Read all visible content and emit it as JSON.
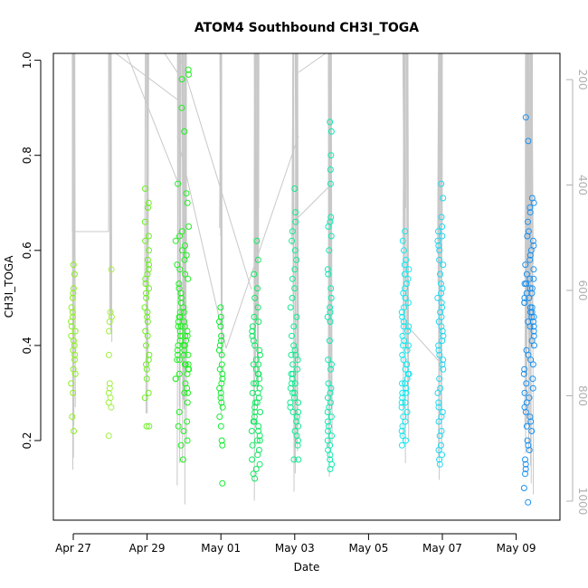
{
  "chart_data": {
    "type": "scatter",
    "title": "ATOM4 Southbound CH3I_TOGA",
    "xlabel": "Date",
    "ylabel": "CH3I_TOGA",
    "x_ticks": [
      "Apr 27",
      "Apr 29",
      "May 01",
      "May 03",
      "May 05",
      "May 07",
      "May 09"
    ],
    "xlim": [
      "Apr 26 12:00",
      "May 10 06:00"
    ],
    "ylim": [
      0.05,
      1.0
    ],
    "y_ticks": [
      0.2,
      0.4,
      0.6,
      0.8,
      1.0
    ],
    "right_axis": {
      "reversed": true,
      "range": [
        150,
        1030
      ],
      "ticks": [
        200,
        400,
        600,
        800,
        1000
      ]
    },
    "grid": false,
    "marker": "open-circle",
    "colors": {
      "Apr 27": "#8cf020",
      "Apr 28": "#a0f040",
      "Apr 29": "#6cf020",
      "Apr 30": "#20f020",
      "May 01": "#10ea30",
      "May 02": "#10e860",
      "May 03": "#10ea90",
      "May 04": "#10e8b0",
      "May 06": "#10e8f0",
      "May 07": "#20d8f0",
      "May 09": "#1890f0",
      "profile_line": "#c8c8c8"
    },
    "clusters": [
      {
        "date": "Apr 27",
        "x_day": 0.0,
        "spread": 0.06,
        "values": [
          0.22,
          0.25,
          0.3,
          0.32,
          0.34,
          0.35,
          0.37,
          0.38,
          0.39,
          0.4,
          0.41,
          0.42,
          0.43,
          0.44,
          0.45,
          0.46,
          0.47,
          0.48,
          0.5,
          0.51,
          0.52,
          0.55,
          0.57
        ]
      },
      {
        "date": "Apr 28",
        "x_day": 1.0,
        "spread": 0.04,
        "values": [
          0.21,
          0.27,
          0.28,
          0.29,
          0.3,
          0.31,
          0.32,
          0.38,
          0.43,
          0.45,
          0.46,
          0.47,
          0.56
        ]
      },
      {
        "date": "Apr 29",
        "x_day": 2.0,
        "spread": 0.07,
        "values": [
          0.23,
          0.23,
          0.29,
          0.3,
          0.33,
          0.35,
          0.36,
          0.37,
          0.38,
          0.4,
          0.42,
          0.43,
          0.45,
          0.46,
          0.47,
          0.48,
          0.5,
          0.51,
          0.52,
          0.53,
          0.54,
          0.55,
          0.56,
          0.57,
          0.58,
          0.6,
          0.62,
          0.63,
          0.66,
          0.69,
          0.7,
          0.73
        ]
      },
      {
        "date": "Apr 30",
        "x_day": 2.95,
        "spread": 0.18,
        "values": [
          0.16,
          0.19,
          0.2,
          0.22,
          0.23,
          0.24,
          0.26,
          0.28,
          0.3,
          0.31,
          0.32,
          0.33,
          0.34,
          0.35,
          0.36,
          0.37,
          0.38,
          0.39,
          0.4,
          0.41,
          0.42,
          0.43,
          0.44,
          0.45,
          0.46,
          0.47,
          0.48,
          0.49,
          0.5,
          0.51,
          0.52,
          0.53,
          0.54,
          0.55,
          0.56,
          0.57,
          0.58,
          0.59,
          0.6,
          0.61,
          0.62,
          0.63,
          0.64,
          0.65,
          0.7,
          0.72,
          0.74,
          0.85,
          0.9,
          0.96,
          0.97,
          0.98,
          0.3,
          0.33,
          0.35,
          0.37,
          0.39,
          0.41,
          0.43,
          0.45,
          0.47,
          0.34,
          0.36,
          0.38,
          0.4,
          0.42,
          0.44,
          0.46,
          0.36,
          0.38,
          0.4,
          0.42,
          0.44
        ]
      },
      {
        "date": "May 01",
        "x_day": 4.0,
        "spread": 0.05,
        "values": [
          0.11,
          0.19,
          0.2,
          0.23,
          0.25,
          0.27,
          0.28,
          0.29,
          0.3,
          0.31,
          0.32,
          0.33,
          0.34,
          0.35,
          0.36,
          0.38,
          0.39,
          0.4,
          0.41,
          0.42,
          0.44,
          0.45,
          0.46,
          0.48
        ]
      },
      {
        "date": "May 02",
        "x_day": 4.95,
        "spread": 0.12,
        "values": [
          0.12,
          0.13,
          0.14,
          0.15,
          0.16,
          0.17,
          0.18,
          0.19,
          0.2,
          0.21,
          0.22,
          0.23,
          0.24,
          0.25,
          0.26,
          0.27,
          0.28,
          0.29,
          0.3,
          0.31,
          0.32,
          0.33,
          0.34,
          0.35,
          0.36,
          0.37,
          0.38,
          0.39,
          0.4,
          0.41,
          0.42,
          0.43,
          0.44,
          0.45,
          0.46,
          0.48,
          0.5,
          0.52,
          0.55,
          0.58,
          0.62,
          0.2,
          0.24,
          0.28,
          0.32,
          0.36,
          0.22,
          0.26,
          0.3,
          0.34
        ]
      },
      {
        "date": "May 03",
        "x_day": 6.0,
        "spread": 0.12,
        "values": [
          0.16,
          0.16,
          0.19,
          0.2,
          0.21,
          0.22,
          0.23,
          0.24,
          0.25,
          0.26,
          0.27,
          0.28,
          0.29,
          0.3,
          0.31,
          0.32,
          0.33,
          0.34,
          0.35,
          0.36,
          0.37,
          0.38,
          0.39,
          0.4,
          0.42,
          0.44,
          0.46,
          0.48,
          0.5,
          0.52,
          0.54,
          0.56,
          0.58,
          0.6,
          0.62,
          0.64,
          0.66,
          0.68,
          0.73,
          0.26,
          0.3,
          0.34,
          0.38,
          0.28,
          0.32
        ]
      },
      {
        "date": "May 04",
        "x_day": 6.95,
        "spread": 0.06,
        "values": [
          0.14,
          0.15,
          0.16,
          0.17,
          0.18,
          0.19,
          0.2,
          0.21,
          0.22,
          0.23,
          0.24,
          0.25,
          0.26,
          0.27,
          0.28,
          0.29,
          0.3,
          0.31,
          0.32,
          0.35,
          0.36,
          0.37,
          0.41,
          0.45,
          0.46,
          0.47,
          0.48,
          0.5,
          0.52,
          0.55,
          0.56,
          0.6,
          0.63,
          0.65,
          0.66,
          0.67,
          0.74,
          0.77,
          0.8,
          0.85,
          0.87
        ]
      },
      {
        "date": "May 06",
        "x_day": 9.0,
        "spread": 0.1,
        "values": [
          0.19,
          0.2,
          0.21,
          0.22,
          0.23,
          0.24,
          0.25,
          0.26,
          0.27,
          0.28,
          0.29,
          0.3,
          0.31,
          0.32,
          0.33,
          0.34,
          0.35,
          0.36,
          0.37,
          0.38,
          0.39,
          0.4,
          0.41,
          0.42,
          0.43,
          0.44,
          0.45,
          0.46,
          0.47,
          0.48,
          0.49,
          0.5,
          0.51,
          0.52,
          0.53,
          0.54,
          0.55,
          0.56,
          0.57,
          0.58,
          0.6,
          0.62,
          0.64,
          0.28,
          0.32,
          0.36,
          0.4,
          0.44,
          0.3,
          0.34
        ]
      },
      {
        "date": "May 07",
        "x_day": 9.95,
        "spread": 0.08,
        "values": [
          0.15,
          0.16,
          0.17,
          0.18,
          0.19,
          0.21,
          0.22,
          0.24,
          0.25,
          0.26,
          0.27,
          0.28,
          0.3,
          0.31,
          0.33,
          0.35,
          0.36,
          0.37,
          0.38,
          0.39,
          0.4,
          0.41,
          0.42,
          0.43,
          0.44,
          0.45,
          0.46,
          0.47,
          0.48,
          0.49,
          0.5,
          0.51,
          0.52,
          0.53,
          0.55,
          0.57,
          0.58,
          0.6,
          0.61,
          0.62,
          0.63,
          0.64,
          0.65,
          0.67,
          0.71,
          0.74
        ]
      },
      {
        "date": "May 09",
        "x_day": 12.35,
        "spread": 0.14,
        "values": [
          0.07,
          0.1,
          0.13,
          0.14,
          0.15,
          0.16,
          0.18,
          0.19,
          0.2,
          0.22,
          0.23,
          0.24,
          0.25,
          0.26,
          0.27,
          0.28,
          0.29,
          0.3,
          0.31,
          0.32,
          0.33,
          0.34,
          0.35,
          0.36,
          0.37,
          0.38,
          0.39,
          0.4,
          0.41,
          0.42,
          0.43,
          0.44,
          0.45,
          0.46,
          0.47,
          0.48,
          0.49,
          0.5,
          0.51,
          0.52,
          0.53,
          0.54,
          0.55,
          0.56,
          0.57,
          0.58,
          0.59,
          0.6,
          0.61,
          0.62,
          0.63,
          0.64,
          0.66,
          0.68,
          0.69,
          0.7,
          0.71,
          0.83,
          0.88,
          0.45,
          0.47,
          0.49,
          0.51,
          0.53,
          0.44,
          0.46,
          0.48,
          0.5,
          0.52,
          0.54
        ]
      }
    ]
  }
}
